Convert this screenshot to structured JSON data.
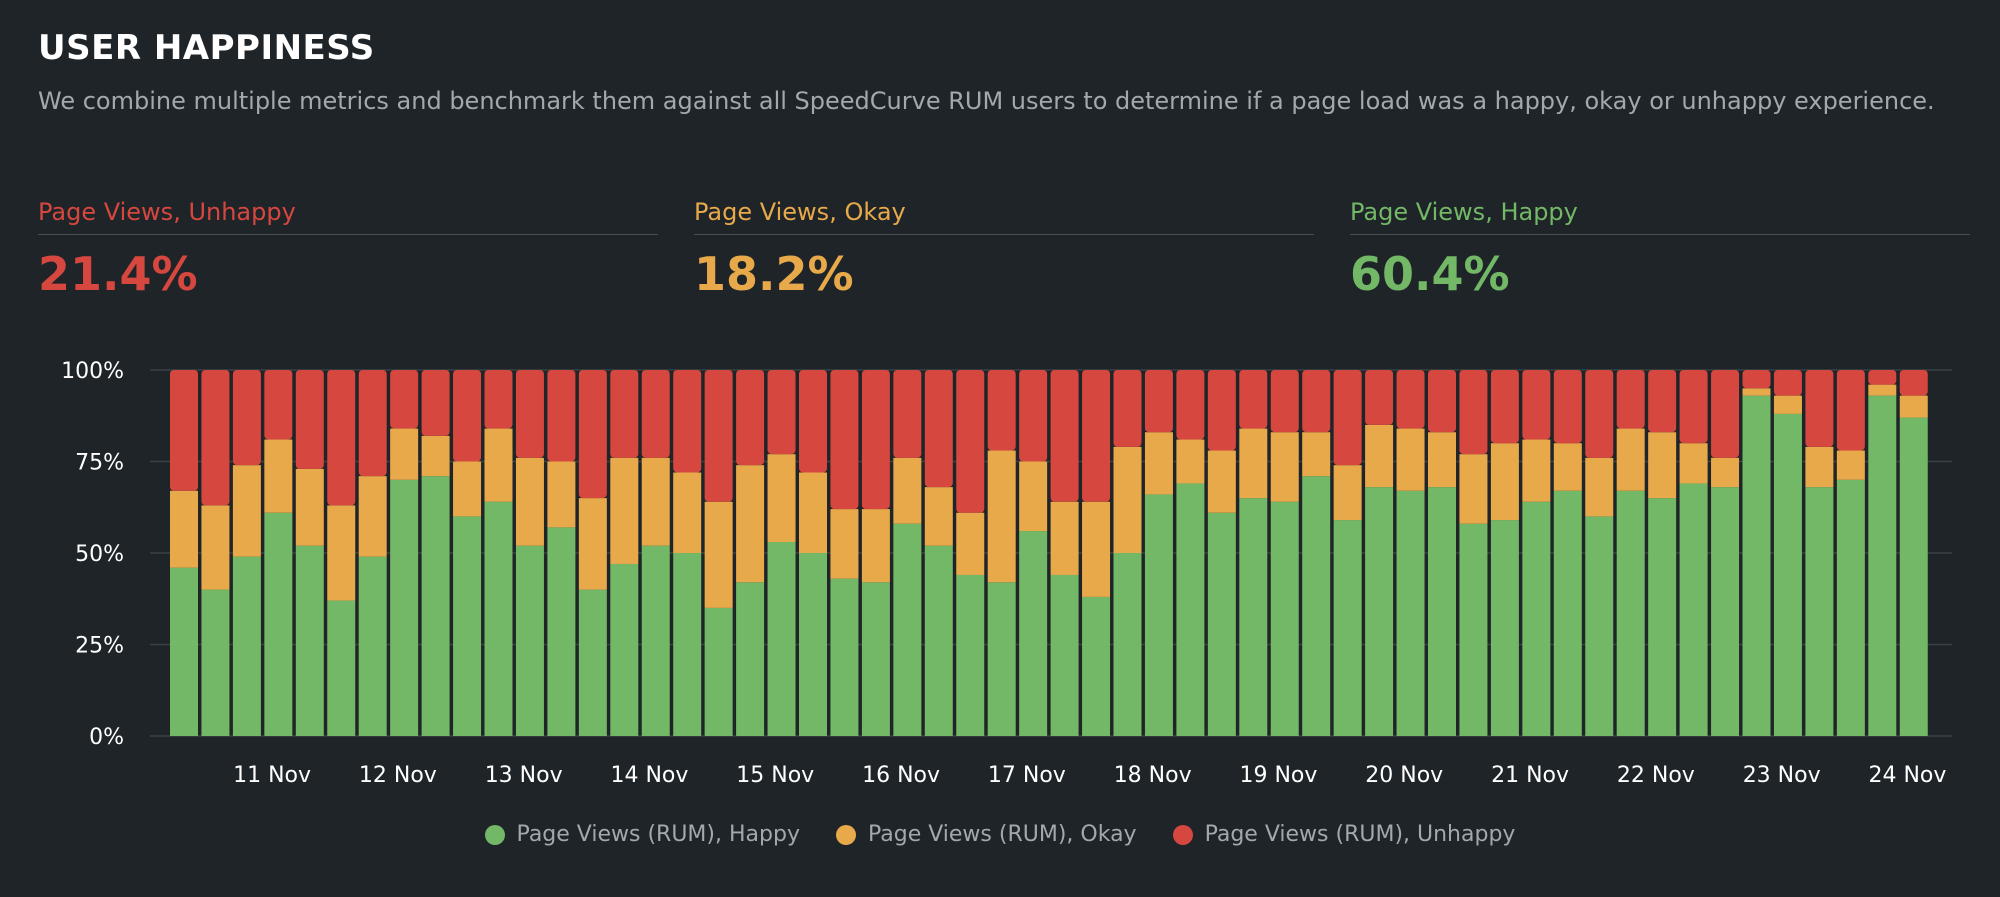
{
  "header": {
    "title": "USER HAPPINESS",
    "description": "We combine multiple metrics and benchmark them against all SpeedCurve RUM users to determine if a page load was a happy, okay or unhappy experience."
  },
  "metrics": [
    {
      "label": "Page Views, Unhappy",
      "value": "21.4%",
      "color": "#d6473f"
    },
    {
      "label": "Page Views, Okay",
      "value": "18.2%",
      "color": "#e8a94b"
    },
    {
      "label": "Page Views, Happy",
      "value": "60.4%",
      "color": "#72b866"
    }
  ],
  "chart_data": {
    "type": "bar",
    "stacked": true,
    "grid": true,
    "legend": "bottom",
    "ylim": [
      0,
      100
    ],
    "yticks": [
      "0%",
      "25%",
      "50%",
      "75%",
      "100%"
    ],
    "xticks": [
      "11 Nov",
      "12 Nov",
      "13 Nov",
      "14 Nov",
      "15 Nov",
      "16 Nov",
      "17 Nov",
      "18 Nov",
      "19 Nov",
      "20 Nov",
      "21 Nov",
      "22 Nov",
      "23 Nov",
      "24 Nov"
    ],
    "series": [
      {
        "name": "Page Views (RUM), Happy",
        "color": "#72b866",
        "values": [
          46,
          40,
          49,
          61,
          52,
          37,
          49,
          70,
          71,
          60,
          64,
          52,
          57,
          40,
          47,
          52,
          50,
          35,
          42,
          53,
          50,
          43,
          42,
          58,
          52,
          44,
          42,
          56,
          44,
          38,
          50,
          66,
          69,
          61,
          65,
          64,
          71,
          59,
          68,
          67,
          68,
          58,
          59,
          64,
          67,
          60,
          67,
          65,
          69,
          68,
          93,
          88,
          68,
          70,
          93,
          87
        ]
      },
      {
        "name": "Page Views (RUM), Okay",
        "color": "#e8a94b",
        "values": [
          21,
          23,
          25,
          20,
          21,
          26,
          22,
          14,
          11,
          15,
          20,
          24,
          18,
          25,
          29,
          24,
          22,
          29,
          32,
          24,
          22,
          19,
          20,
          18,
          16,
          17,
          36,
          19,
          20,
          26,
          29,
          17,
          12,
          17,
          19,
          19,
          12,
          15,
          17,
          17,
          15,
          19,
          21,
          17,
          13,
          16,
          17,
          18,
          11,
          8,
          2,
          5,
          11,
          8,
          3,
          6
        ]
      },
      {
        "name": "Page Views (RUM), Unhappy",
        "color": "#d6473f",
        "values": [
          33,
          37,
          26,
          19,
          27,
          37,
          29,
          16,
          18,
          25,
          16,
          24,
          25,
          35,
          24,
          24,
          28,
          36,
          26,
          23,
          28,
          38,
          38,
          24,
          32,
          39,
          22,
          25,
          36,
          36,
          21,
          17,
          19,
          22,
          16,
          17,
          17,
          26,
          15,
          16,
          17,
          23,
          20,
          19,
          20,
          24,
          16,
          17,
          20,
          24,
          5,
          7,
          21,
          22,
          4,
          7
        ]
      }
    ]
  }
}
